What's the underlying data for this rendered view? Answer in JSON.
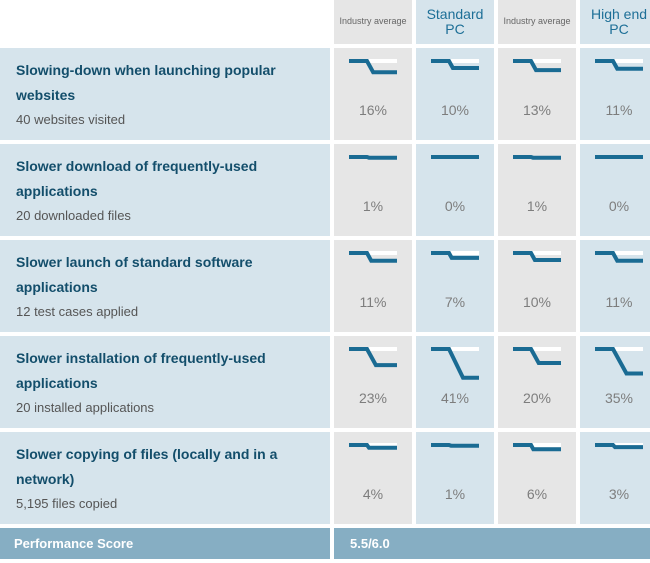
{
  "columns": [
    {
      "label": "Industry average",
      "style": "small"
    },
    {
      "label": "Standard PC",
      "style": "big"
    },
    {
      "label": "Industry average",
      "style": "small"
    },
    {
      "label": "High end PC",
      "style": "big"
    }
  ],
  "rows": [
    {
      "title": "Slowing-down when launching popular websites",
      "subtitle": "40 websites visited",
      "values": [
        "16%",
        "10%",
        "13%",
        "11%"
      ],
      "slowdowns": [
        0.16,
        0.1,
        0.13,
        0.11
      ]
    },
    {
      "title": "Slower download of frequently-used applications",
      "subtitle": "20 downloaded files",
      "values": [
        "1%",
        "0%",
        "1%",
        "0%"
      ],
      "slowdowns": [
        0.01,
        0.0,
        0.01,
        0.0
      ]
    },
    {
      "title": "Slower launch of standard software applications",
      "subtitle": "12 test cases applied",
      "values": [
        "11%",
        "7%",
        "10%",
        "11%"
      ],
      "slowdowns": [
        0.11,
        0.07,
        0.1,
        0.11
      ]
    },
    {
      "title": "Slower installation of frequently-used applications",
      "subtitle": "20 installed applications",
      "values": [
        "23%",
        "41%",
        "20%",
        "35%"
      ],
      "slowdowns": [
        0.23,
        0.41,
        0.2,
        0.35
      ]
    },
    {
      "title": "Slower copying of files (locally and in a network)",
      "subtitle": "5,195 files copied",
      "values": [
        "4%",
        "1%",
        "6%",
        "3%"
      ],
      "slowdowns": [
        0.04,
        0.01,
        0.06,
        0.03
      ]
    }
  ],
  "footer": {
    "label": "Performance Score",
    "score": "5.5/6.0"
  },
  "colors": {
    "line": "#1a6b93",
    "header_blue": "#d6e4ec",
    "header_gray": "#e6e6e6",
    "footer": "#86aec3"
  }
}
